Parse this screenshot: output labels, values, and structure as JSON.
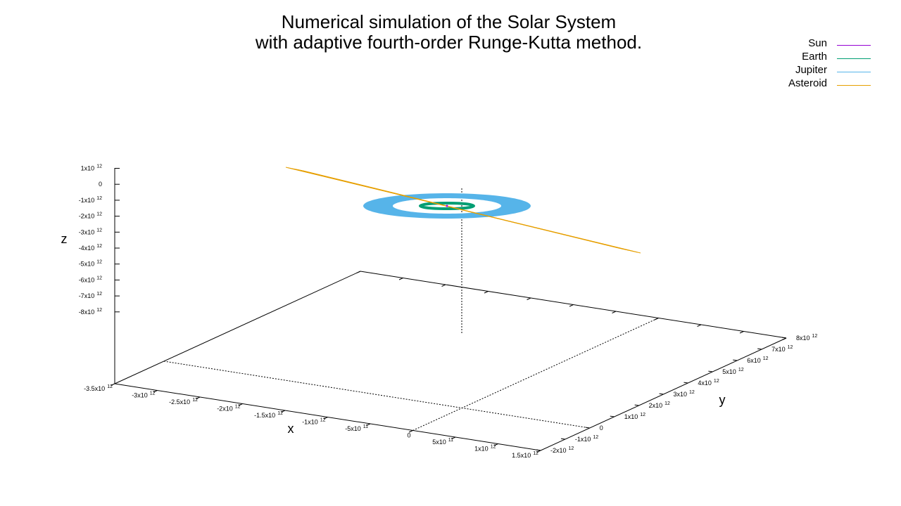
{
  "chart_data": {
    "type": "3d-line",
    "title": [
      "Numerical simulation of the Solar System",
      "with adaptive fourth-order Runge-Kutta method."
    ],
    "xlabel": "x",
    "ylabel": "y",
    "zlabel": "z",
    "xlim": [
      -3500000000000.0,
      1500000000000.0
    ],
    "ylim": [
      -2000000000000.0,
      8000000000000.0
    ],
    "zlim": [
      -8000000000000.0,
      1000000000000.0
    ],
    "x_ticks": [
      {
        "base": "-3.5x10",
        "exp": "12"
      },
      {
        "base": "-3x10",
        "exp": "12"
      },
      {
        "base": "-2.5x10",
        "exp": "12"
      },
      {
        "base": "-2x10",
        "exp": "12"
      },
      {
        "base": "-1.5x10",
        "exp": "12"
      },
      {
        "base": "-1x10",
        "exp": "12"
      },
      {
        "base": "-5x10",
        "exp": "11"
      },
      {
        "base": "0",
        "exp": ""
      },
      {
        "base": "5x10",
        "exp": "11"
      },
      {
        "base": "1x10",
        "exp": "12"
      },
      {
        "base": "1.5x10",
        "exp": "12"
      }
    ],
    "y_ticks": [
      {
        "base": "-2x10",
        "exp": "12"
      },
      {
        "base": "-1x10",
        "exp": "12"
      },
      {
        "base": "0",
        "exp": ""
      },
      {
        "base": "1x10",
        "exp": "12"
      },
      {
        "base": "2x10",
        "exp": "12"
      },
      {
        "base": "3x10",
        "exp": "12"
      },
      {
        "base": "4x10",
        "exp": "12"
      },
      {
        "base": "5x10",
        "exp": "12"
      },
      {
        "base": "6x10",
        "exp": "12"
      },
      {
        "base": "7x10",
        "exp": "12"
      },
      {
        "base": "8x10",
        "exp": "12"
      }
    ],
    "z_ticks": [
      {
        "base": "1x10",
        "exp": "12"
      },
      {
        "base": "0",
        "exp": ""
      },
      {
        "base": "-1x10",
        "exp": "12"
      },
      {
        "base": "-2x10",
        "exp": "12"
      },
      {
        "base": "-3x10",
        "exp": "12"
      },
      {
        "base": "-4x10",
        "exp": "12"
      },
      {
        "base": "-5x10",
        "exp": "12"
      },
      {
        "base": "-6x10",
        "exp": "12"
      },
      {
        "base": "-7x10",
        "exp": "12"
      },
      {
        "base": "-8x10",
        "exp": "12"
      }
    ],
    "legend_position": "top-right",
    "series": [
      {
        "name": "Sun",
        "color": "#9400d3",
        "orbit_radius": 0
      },
      {
        "name": "Earth",
        "color": "#009e73",
        "orbit_radius": 150000000000.0
      },
      {
        "name": "Jupiter",
        "color": "#56b4e9",
        "orbit_radius": 780000000000.0
      },
      {
        "name": "Asteroid",
        "color": "#e69f00"
      }
    ]
  }
}
